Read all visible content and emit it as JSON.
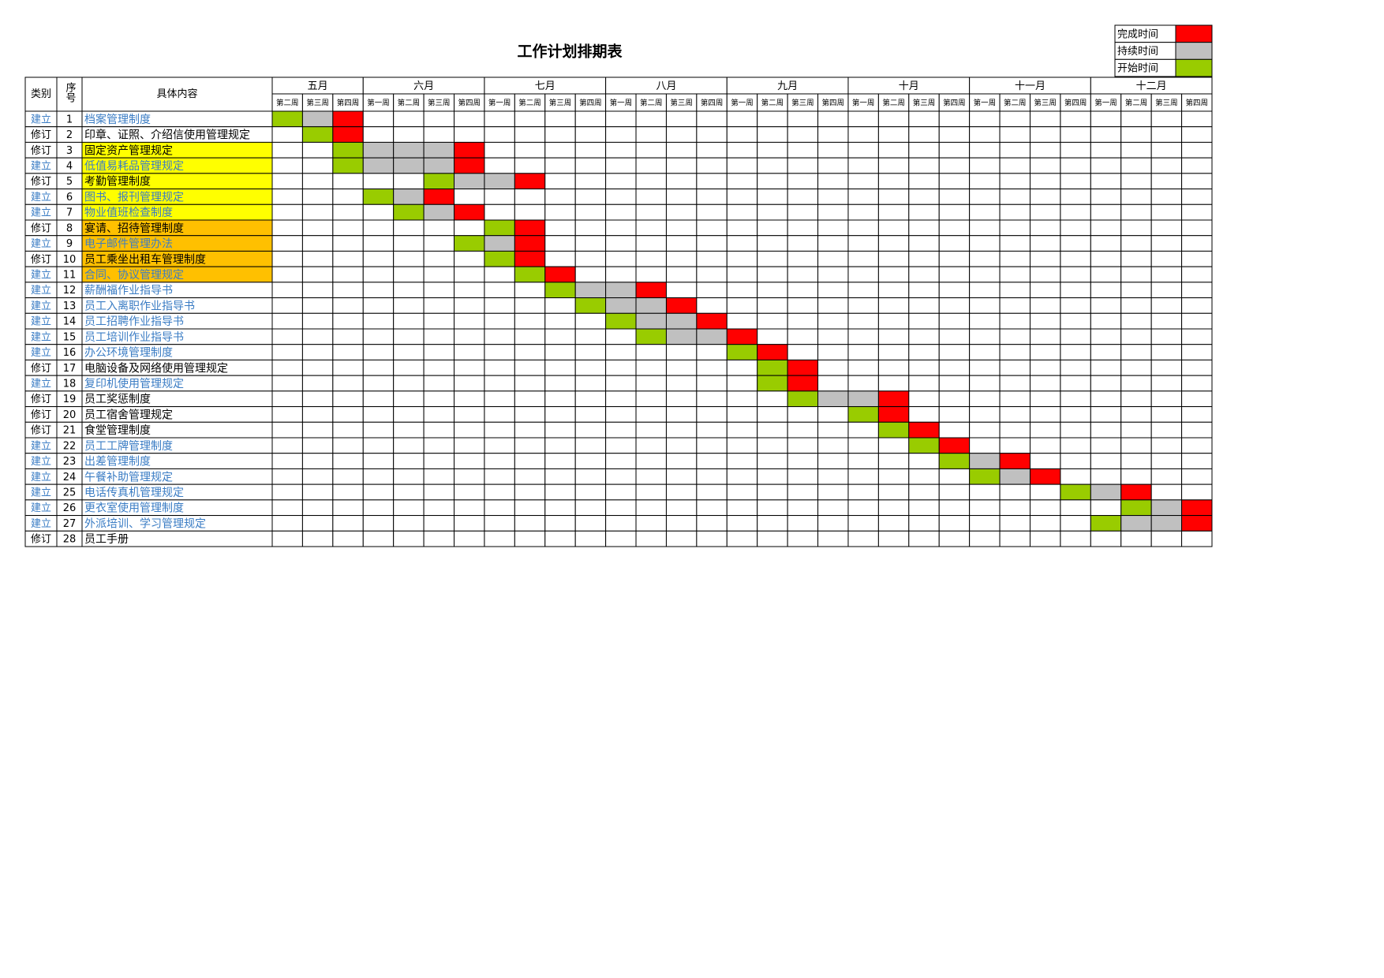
{
  "title": "工作计划排期表",
  "legend": [
    {
      "label": "完成时间",
      "color": "#ff0000"
    },
    {
      "label": "持续时间",
      "color": "#c0c0c0"
    },
    {
      "label": "开始时间",
      "color": "#99cc00"
    }
  ],
  "header": {
    "category": "类别",
    "number": "序号",
    "content": "具体内容"
  },
  "months": [
    {
      "name": "五月",
      "weeks": [
        "第二周",
        "第三周",
        "第四周"
      ]
    },
    {
      "name": "六月",
      "weeks": [
        "第一周",
        "第二周",
        "第三周",
        "第四周"
      ]
    },
    {
      "name": "七月",
      "weeks": [
        "第一周",
        "第二周",
        "第三周",
        "第四周"
      ]
    },
    {
      "name": "八月",
      "weeks": [
        "第一周",
        "第二周",
        "第三周",
        "第四周"
      ]
    },
    {
      "name": "九月",
      "weeks": [
        "第一周",
        "第二周",
        "第三周",
        "第四周"
      ]
    },
    {
      "name": "十月",
      "weeks": [
        "第一周",
        "第二周",
        "第三周",
        "第四周"
      ]
    },
    {
      "name": "十一月",
      "weeks": [
        "第一周",
        "第二周",
        "第三周",
        "第四周"
      ]
    },
    {
      "name": "十二月",
      "weeks": [
        "第一周",
        "第二周",
        "第三周",
        "第四周"
      ]
    }
  ],
  "rows": [
    {
      "category": "建立",
      "category_color": "#3a7cc4",
      "number": 1,
      "content": "档案管理制度",
      "content_color": "#3a7cc4",
      "cells": [
        "#99cc00",
        "#c0c0c0",
        "#ff0000",
        null,
        null,
        null,
        null,
        null,
        null,
        null,
        null,
        null,
        null,
        null,
        null,
        null,
        null,
        null,
        null,
        null,
        null,
        null,
        null,
        null,
        null,
        null,
        null,
        null,
        null,
        null,
        null
      ]
    },
    {
      "category": "修订",
      "category_color": "#000000",
      "number": 2,
      "content": "印章、证照、介绍信使用管理规定",
      "content_color": "#000000",
      "cells": [
        null,
        "#99cc00",
        "#ff0000",
        null,
        null,
        null,
        null,
        null,
        null,
        null,
        null,
        null,
        null,
        null,
        null,
        null,
        null,
        null,
        null,
        null,
        null,
        null,
        null,
        null,
        null,
        null,
        null,
        null,
        null,
        null,
        null
      ]
    },
    {
      "category": "修订",
      "category_color": "#000000",
      "number": 3,
      "content": "固定资产管理规定",
      "content_color": "#000000",
      "fill": "#ffff00",
      "cells": [
        null,
        null,
        "#99cc00",
        "#c0c0c0",
        "#c0c0c0",
        "#c0c0c0",
        "#ff0000",
        null,
        null,
        null,
        null,
        null,
        null,
        null,
        null,
        null,
        null,
        null,
        null,
        null,
        null,
        null,
        null,
        null,
        null,
        null,
        null,
        null,
        null,
        null,
        null
      ]
    },
    {
      "category": "建立",
      "category_color": "#3a7cc4",
      "number": 4,
      "content": "低值易耗品管理规定",
      "content_color": "#3a7cc4",
      "fill": "#ffff00",
      "cells": [
        null,
        null,
        "#99cc00",
        "#c0c0c0",
        "#c0c0c0",
        "#c0c0c0",
        "#ff0000",
        null,
        null,
        null,
        null,
        null,
        null,
        null,
        null,
        null,
        null,
        null,
        null,
        null,
        null,
        null,
        null,
        null,
        null,
        null,
        null,
        null,
        null,
        null,
        null
      ]
    },
    {
      "category": "修订",
      "category_color": "#000000",
      "number": 5,
      "content": "考勤管理制度",
      "content_color": "#000000",
      "fill": "#ffff00",
      "cells": [
        null,
        null,
        null,
        null,
        null,
        "#99cc00",
        "#c0c0c0",
        "#c0c0c0",
        "#ff0000",
        null,
        null,
        null,
        null,
        null,
        null,
        null,
        null,
        null,
        null,
        null,
        null,
        null,
        null,
        null,
        null,
        null,
        null,
        null,
        null,
        null,
        null
      ]
    },
    {
      "category": "建立",
      "category_color": "#3a7cc4",
      "number": 6,
      "content": "图书、报刊管理规定",
      "content_color": "#3a7cc4",
      "fill": "#ffff00",
      "cells": [
        null,
        null,
        null,
        "#99cc00",
        "#c0c0c0",
        "#ff0000",
        null,
        null,
        null,
        null,
        null,
        null,
        null,
        null,
        null,
        null,
        null,
        null,
        null,
        null,
        null,
        null,
        null,
        null,
        null,
        null,
        null,
        null,
        null,
        null,
        null
      ]
    },
    {
      "category": "建立",
      "category_color": "#3a7cc4",
      "number": 7,
      "content": "物业值班检查制度",
      "content_color": "#3a7cc4",
      "fill": "#ffff00",
      "cells": [
        null,
        null,
        null,
        null,
        "#99cc00",
        "#c0c0c0",
        "#ff0000",
        null,
        null,
        null,
        null,
        null,
        null,
        null,
        null,
        null,
        null,
        null,
        null,
        null,
        null,
        null,
        null,
        null,
        null,
        null,
        null,
        null,
        null,
        null,
        null
      ]
    },
    {
      "category": "修订",
      "category_color": "#000000",
      "number": 8,
      "content": "宴请、招待管理制度",
      "content_color": "#000000",
      "fill": "#ffc000",
      "cells": [
        null,
        null,
        null,
        null,
        null,
        null,
        null,
        "#99cc00",
        "#ff0000",
        null,
        null,
        null,
        null,
        null,
        null,
        null,
        null,
        null,
        null,
        null,
        null,
        null,
        null,
        null,
        null,
        null,
        null,
        null,
        null,
        null,
        null
      ]
    },
    {
      "category": "建立",
      "category_color": "#3a7cc4",
      "number": 9,
      "content": "电子邮件管理办法",
      "content_color": "#3a7cc4",
      "fill": "#ffc000",
      "cells": [
        null,
        null,
        null,
        null,
        null,
        null,
        "#99cc00",
        "#c0c0c0",
        "#ff0000",
        null,
        null,
        null,
        null,
        null,
        null,
        null,
        null,
        null,
        null,
        null,
        null,
        null,
        null,
        null,
        null,
        null,
        null,
        null,
        null,
        null,
        null
      ]
    },
    {
      "category": "修订",
      "category_color": "#000000",
      "number": 10,
      "content": "员工乘坐出租车管理制度",
      "content_color": "#000000",
      "fill": "#ffc000",
      "cells": [
        null,
        null,
        null,
        null,
        null,
        null,
        null,
        "#99cc00",
        "#ff0000",
        null,
        null,
        null,
        null,
        null,
        null,
        null,
        null,
        null,
        null,
        null,
        null,
        null,
        null,
        null,
        null,
        null,
        null,
        null,
        null,
        null,
        null
      ]
    },
    {
      "category": "建立",
      "category_color": "#3a7cc4",
      "number": 11,
      "content": "合同、协议管理规定",
      "content_color": "#3a7cc4",
      "fill": "#ffc000",
      "cells": [
        null,
        null,
        null,
        null,
        null,
        null,
        null,
        null,
        "#99cc00",
        "#ff0000",
        null,
        null,
        null,
        null,
        null,
        null,
        null,
        null,
        null,
        null,
        null,
        null,
        null,
        null,
        null,
        null,
        null,
        null,
        null,
        null,
        null
      ]
    },
    {
      "category": "建立",
      "category_color": "#3a7cc4",
      "number": 12,
      "content": "薪酬福作业指导书",
      "content_color": "#3a7cc4",
      "cells": [
        null,
        null,
        null,
        null,
        null,
        null,
        null,
        null,
        null,
        "#99cc00",
        "#c0c0c0",
        "#c0c0c0",
        "#ff0000",
        null,
        null,
        null,
        null,
        null,
        null,
        null,
        null,
        null,
        null,
        null,
        null,
        null,
        null,
        null,
        null,
        null,
        null
      ]
    },
    {
      "category": "建立",
      "category_color": "#3a7cc4",
      "number": 13,
      "content": "员工入离职作业指导书",
      "content_color": "#3a7cc4",
      "cells": [
        null,
        null,
        null,
        null,
        null,
        null,
        null,
        null,
        null,
        null,
        "#99cc00",
        "#c0c0c0",
        "#c0c0c0",
        "#ff0000",
        null,
        null,
        null,
        null,
        null,
        null,
        null,
        null,
        null,
        null,
        null,
        null,
        null,
        null,
        null,
        null,
        null
      ]
    },
    {
      "category": "建立",
      "category_color": "#3a7cc4",
      "number": 14,
      "content": "员工招聘作业指导书",
      "content_color": "#3a7cc4",
      "cells": [
        null,
        null,
        null,
        null,
        null,
        null,
        null,
        null,
        null,
        null,
        null,
        "#99cc00",
        "#c0c0c0",
        "#c0c0c0",
        "#ff0000",
        null,
        null,
        null,
        null,
        null,
        null,
        null,
        null,
        null,
        null,
        null,
        null,
        null,
        null,
        null,
        null
      ]
    },
    {
      "category": "建立",
      "category_color": "#3a7cc4",
      "number": 15,
      "content": "员工培训作业指导书",
      "content_color": "#3a7cc4",
      "cells": [
        null,
        null,
        null,
        null,
        null,
        null,
        null,
        null,
        null,
        null,
        null,
        null,
        "#99cc00",
        "#c0c0c0",
        "#c0c0c0",
        "#ff0000",
        null,
        null,
        null,
        null,
        null,
        null,
        null,
        null,
        null,
        null,
        null,
        null,
        null,
        null,
        null
      ]
    },
    {
      "category": "建立",
      "category_color": "#3a7cc4",
      "number": 16,
      "content": "办公环境管理制度",
      "content_color": "#3a7cc4",
      "cells": [
        null,
        null,
        null,
        null,
        null,
        null,
        null,
        null,
        null,
        null,
        null,
        null,
        null,
        null,
        null,
        "#99cc00",
        "#ff0000",
        null,
        null,
        null,
        null,
        null,
        null,
        null,
        null,
        null,
        null,
        null,
        null,
        null,
        null
      ]
    },
    {
      "category": "修订",
      "category_color": "#000000",
      "number": 17,
      "content": "电脑设备及网络使用管理规定",
      "content_color": "#000000",
      "cells": [
        null,
        null,
        null,
        null,
        null,
        null,
        null,
        null,
        null,
        null,
        null,
        null,
        null,
        null,
        null,
        null,
        "#99cc00",
        "#ff0000",
        null,
        null,
        null,
        null,
        null,
        null,
        null,
        null,
        null,
        null,
        null,
        null,
        null
      ]
    },
    {
      "category": "建立",
      "category_color": "#3a7cc4",
      "number": 18,
      "content": "复印机使用管理规定",
      "content_color": "#3a7cc4",
      "cells": [
        null,
        null,
        null,
        null,
        null,
        null,
        null,
        null,
        null,
        null,
        null,
        null,
        null,
        null,
        null,
        null,
        "#99cc00",
        "#ff0000",
        null,
        null,
        null,
        null,
        null,
        null,
        null,
        null,
        null,
        null,
        null,
        null,
        null
      ]
    },
    {
      "category": "修订",
      "category_color": "#000000",
      "number": 19,
      "content": "员工奖惩制度",
      "content_color": "#000000",
      "cells": [
        null,
        null,
        null,
        null,
        null,
        null,
        null,
        null,
        null,
        null,
        null,
        null,
        null,
        null,
        null,
        null,
        null,
        "#99cc00",
        "#c0c0c0",
        "#c0c0c0",
        "#ff0000",
        null,
        null,
        null,
        null,
        null,
        null,
        null,
        null,
        null,
        null
      ]
    },
    {
      "category": "修订",
      "category_color": "#000000",
      "number": 20,
      "content": "员工宿舍管理规定",
      "content_color": "#000000",
      "cells": [
        null,
        null,
        null,
        null,
        null,
        null,
        null,
        null,
        null,
        null,
        null,
        null,
        null,
        null,
        null,
        null,
        null,
        null,
        null,
        "#99cc00",
        "#ff0000",
        null,
        null,
        null,
        null,
        null,
        null,
        null,
        null,
        null,
        null
      ]
    },
    {
      "category": "修订",
      "category_color": "#000000",
      "number": 21,
      "content": "食堂管理制度",
      "content_color": "#000000",
      "cells": [
        null,
        null,
        null,
        null,
        null,
        null,
        null,
        null,
        null,
        null,
        null,
        null,
        null,
        null,
        null,
        null,
        null,
        null,
        null,
        null,
        "#99cc00",
        "#ff0000",
        null,
        null,
        null,
        null,
        null,
        null,
        null,
        null,
        null
      ]
    },
    {
      "category": "建立",
      "category_color": "#3a7cc4",
      "number": 22,
      "content": "员工工牌管理制度",
      "content_color": "#3a7cc4",
      "cells": [
        null,
        null,
        null,
        null,
        null,
        null,
        null,
        null,
        null,
        null,
        null,
        null,
        null,
        null,
        null,
        null,
        null,
        null,
        null,
        null,
        null,
        "#99cc00",
        "#ff0000",
        null,
        null,
        null,
        null,
        null,
        null,
        null,
        null
      ]
    },
    {
      "category": "建立",
      "category_color": "#3a7cc4",
      "number": 23,
      "content": "出差管理制度",
      "content_color": "#3a7cc4",
      "cells": [
        null,
        null,
        null,
        null,
        null,
        null,
        null,
        null,
        null,
        null,
        null,
        null,
        null,
        null,
        null,
        null,
        null,
        null,
        null,
        null,
        null,
        null,
        "#99cc00",
        "#c0c0c0",
        "#ff0000",
        null,
        null,
        null,
        null,
        null,
        null
      ]
    },
    {
      "category": "建立",
      "category_color": "#3a7cc4",
      "number": 24,
      "content": "午餐补助管理规定",
      "content_color": "#3a7cc4",
      "cells": [
        null,
        null,
        null,
        null,
        null,
        null,
        null,
        null,
        null,
        null,
        null,
        null,
        null,
        null,
        null,
        null,
        null,
        null,
        null,
        null,
        null,
        null,
        null,
        "#99cc00",
        "#c0c0c0",
        "#ff0000",
        null,
        null,
        null,
        null,
        null
      ]
    },
    {
      "category": "建立",
      "category_color": "#3a7cc4",
      "number": 25,
      "content": "电话传真机管理规定",
      "content_color": "#3a7cc4",
      "cells": [
        null,
        null,
        null,
        null,
        null,
        null,
        null,
        null,
        null,
        null,
        null,
        null,
        null,
        null,
        null,
        null,
        null,
        null,
        null,
        null,
        null,
        null,
        null,
        null,
        null,
        null,
        "#99cc00",
        "#c0c0c0",
        "#ff0000",
        null,
        null
      ]
    },
    {
      "category": "建立",
      "category_color": "#3a7cc4",
      "number": 26,
      "content": "更衣室使用管理制度",
      "content_color": "#3a7cc4",
      "cells": [
        null,
        null,
        null,
        null,
        null,
        null,
        null,
        null,
        null,
        null,
        null,
        null,
        null,
        null,
        null,
        null,
        null,
        null,
        null,
        null,
        null,
        null,
        null,
        null,
        null,
        null,
        null,
        null,
        "#99cc00",
        "#c0c0c0",
        "#ff0000"
      ]
    },
    {
      "category": "建立",
      "category_color": "#3a7cc4",
      "number": 27,
      "content": "外派培训、学习管理规定",
      "content_color": "#3a7cc4",
      "cells": [
        null,
        null,
        null,
        null,
        null,
        null,
        null,
        null,
        null,
        null,
        null,
        null,
        null,
        null,
        null,
        null,
        null,
        null,
        null,
        null,
        null,
        null,
        null,
        null,
        null,
        null,
        null,
        "#99cc00",
        "#c0c0c0",
        "#c0c0c0",
        "#ff0000"
      ]
    },
    {
      "category": "修订",
      "category_color": "#000000",
      "number": 28,
      "content": "员工手册",
      "content_color": "#000000",
      "cells": [
        null,
        null,
        null,
        null,
        null,
        null,
        null,
        null,
        null,
        null,
        null,
        null,
        null,
        null,
        null,
        null,
        null,
        null,
        null,
        null,
        null,
        null,
        null,
        null,
        null,
        null,
        null,
        null,
        null,
        null,
        null
      ]
    }
  ]
}
